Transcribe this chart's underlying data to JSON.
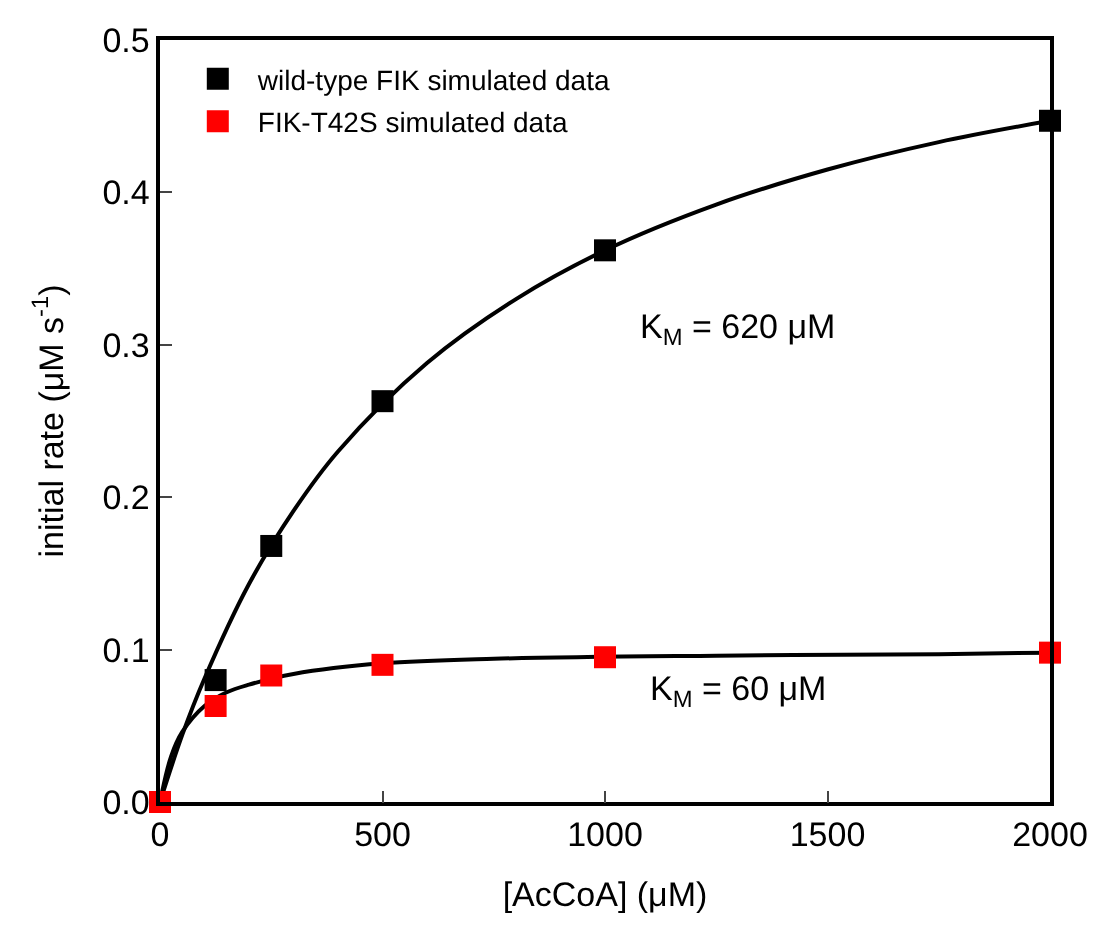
{
  "chart_data": {
    "type": "scatter",
    "xlabel": "[AcCoA] (μM)",
    "ylabel": "initial rate (μM s$^{-1}$)",
    "xlim": [
      0,
      2000
    ],
    "ylim": [
      0,
      0.5
    ],
    "xticks": [
      0,
      500,
      1000,
      1500,
      2000
    ],
    "yticks": [
      {
        "value": 0,
        "label": "0.0"
      },
      0.1,
      0.2,
      0.3,
      0.4,
      0.5
    ],
    "legend": "top left",
    "marker": "square",
    "series": [
      {
        "name": "wild-type FIK simulated data",
        "color": "#000000",
        "x": [
          125,
          250,
          500,
          1000,
          2000
        ],
        "values": [
          0.08,
          0.168,
          0.263,
          0.362,
          0.447
        ]
      },
      {
        "name": "FIK-T42S simulated data",
        "color": "#ff0000",
        "x": [
          0,
          125,
          250,
          500,
          1000,
          2000
        ],
        "values": [
          0,
          0.063,
          0.083,
          0.09,
          0.095,
          0.098
        ]
      },
      {
        "type": "line",
        "color": "#000000",
        "marker": "none",
        "x": [
          0,
          50,
          100,
          200,
          300,
          400,
          600,
          800,
          1000,
          1250,
          1500,
          1750,
          2000
        ],
        "values": [
          0,
          0.044,
          0.081,
          0.143,
          0.191,
          0.23,
          0.288,
          0.33,
          0.362,
          0.392,
          0.415,
          0.433,
          0.447
        ]
      },
      {
        "type": "line",
        "color": "#000000",
        "marker": "none",
        "x": [
          0,
          25,
          50,
          100,
          150,
          200,
          300,
          500,
          750,
          1250,
          1750,
          2000
        ],
        "values": [
          0,
          0.03,
          0.046,
          0.063,
          0.072,
          0.077,
          0.084,
          0.091,
          0.094,
          0.096,
          0.097,
          0.098
        ]
      }
    ],
    "annotations": [
      "K$_{M}$ = 620 μM",
      "K$_{M}$ = 60 μM"
    ]
  }
}
